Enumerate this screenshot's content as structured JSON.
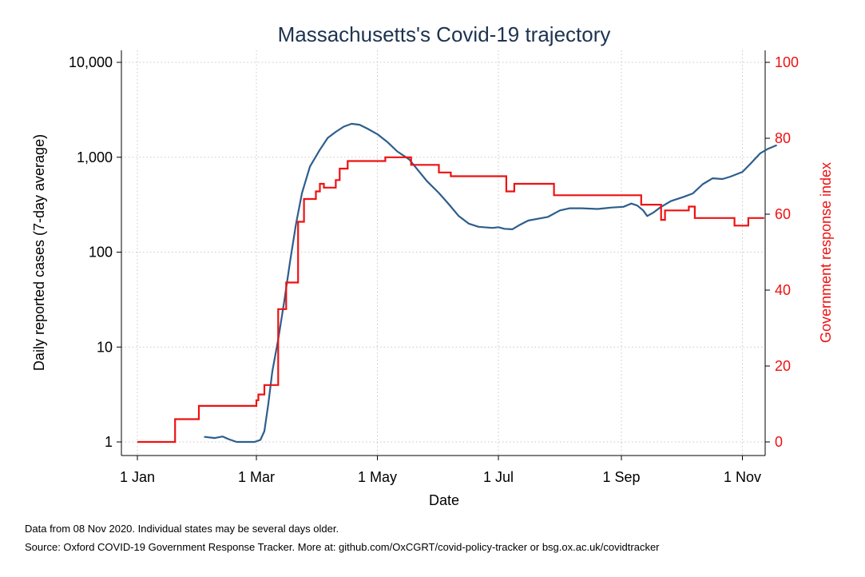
{
  "chart_data": {
    "type": "line",
    "title": "Massachusetts's Covid-19 trajectory",
    "xlabel": "Date",
    "ylabel_left": "Daily reported cases (7-day average)",
    "ylabel_right": "Government response index",
    "x_ticks": [
      "2020-01-01",
      "2020-03-01",
      "2020-05-01",
      "2020-07-01",
      "2020-09-01",
      "2020-11-01"
    ],
    "x_tick_labels": [
      "1 Jan",
      "1 Mar",
      "1 May",
      "1 Jul",
      "1 Sep",
      "1 Nov"
    ],
    "xlim": [
      "2020-01-01",
      "2020-11-08"
    ],
    "y_left_scale": "log",
    "y_left_ticks": [
      1,
      10,
      100,
      1000,
      10000
    ],
    "y_left_tick_labels": [
      "1",
      "10",
      "100",
      "1,000",
      "10,000"
    ],
    "ylim_left": [
      1,
      10000
    ],
    "y_right_ticks": [
      0,
      20,
      40,
      60,
      80,
      100
    ],
    "y_right_tick_labels": [
      "0",
      "20",
      "40",
      "60",
      "80",
      "100"
    ],
    "ylim_right": [
      0,
      100
    ],
    "grid": true,
    "legend": "none",
    "colors": {
      "cases": "#2d5e8c",
      "index": "#ee1111",
      "right_axis": "#ee1111",
      "grid": "#c8c8c8"
    },
    "series": [
      {
        "axis": "left",
        "color": "#2d5e8c",
        "points": [
          [
            "2020-02-04",
            1.13
          ],
          [
            "2020-02-09",
            1.1
          ],
          [
            "2020-02-13",
            1.14
          ],
          [
            "2020-02-16",
            1.07
          ],
          [
            "2020-02-20",
            1.0
          ],
          [
            "2020-02-29",
            1.0
          ],
          [
            "2020-03-03",
            1.05
          ],
          [
            "2020-03-05",
            1.3
          ],
          [
            "2020-03-07",
            2.5
          ],
          [
            "2020-03-09",
            5.5
          ],
          [
            "2020-03-12",
            12
          ],
          [
            "2020-03-15",
            30
          ],
          [
            "2020-03-18",
            80
          ],
          [
            "2020-03-21",
            200
          ],
          [
            "2020-03-24",
            420
          ],
          [
            "2020-03-28",
            800
          ],
          [
            "2020-04-02",
            1200
          ],
          [
            "2020-04-06",
            1600
          ],
          [
            "2020-04-10",
            1850
          ],
          [
            "2020-04-14",
            2100
          ],
          [
            "2020-04-18",
            2250
          ],
          [
            "2020-04-22",
            2200
          ],
          [
            "2020-04-26",
            2000
          ],
          [
            "2020-05-01",
            1750
          ],
          [
            "2020-05-06",
            1450
          ],
          [
            "2020-05-11",
            1150
          ],
          [
            "2020-05-17",
            950
          ],
          [
            "2020-05-21",
            750
          ],
          [
            "2020-05-26",
            560
          ],
          [
            "2020-06-01",
            420
          ],
          [
            "2020-06-06",
            320
          ],
          [
            "2020-06-11",
            240
          ],
          [
            "2020-06-16",
            200
          ],
          [
            "2020-06-21",
            185
          ],
          [
            "2020-06-28",
            180
          ],
          [
            "2020-07-01",
            183
          ],
          [
            "2020-07-04",
            176
          ],
          [
            "2020-07-08",
            174
          ],
          [
            "2020-07-12",
            195
          ],
          [
            "2020-07-16",
            215
          ],
          [
            "2020-07-21",
            225
          ],
          [
            "2020-07-26",
            235
          ],
          [
            "2020-08-01",
            275
          ],
          [
            "2020-08-06",
            290
          ],
          [
            "2020-08-12",
            290
          ],
          [
            "2020-08-20",
            285
          ],
          [
            "2020-08-27",
            295
          ],
          [
            "2020-09-02",
            300
          ],
          [
            "2020-09-06",
            325
          ],
          [
            "2020-09-09",
            310
          ],
          [
            "2020-09-12",
            275
          ],
          [
            "2020-09-14",
            240
          ],
          [
            "2020-09-17",
            260
          ],
          [
            "2020-09-21",
            300
          ],
          [
            "2020-09-26",
            345
          ],
          [
            "2020-10-02",
            380
          ],
          [
            "2020-10-07",
            415
          ],
          [
            "2020-10-12",
            520
          ],
          [
            "2020-10-17",
            600
          ],
          [
            "2020-10-22",
            590
          ],
          [
            "2020-10-26",
            625
          ],
          [
            "2020-11-01",
            700
          ],
          [
            "2020-11-05",
            850
          ],
          [
            "2020-11-10",
            1100
          ],
          [
            "2020-11-14",
            1230
          ],
          [
            "2020-11-18",
            1330
          ]
        ]
      },
      {
        "axis": "right",
        "color": "#ee1111",
        "steps": [
          [
            "2020-01-01",
            0
          ],
          [
            "2020-01-20",
            6
          ],
          [
            "2020-02-01",
            9.5
          ],
          [
            "2020-03-01",
            11
          ],
          [
            "2020-03-02",
            12.5
          ],
          [
            "2020-03-05",
            15
          ],
          [
            "2020-03-12",
            35
          ],
          [
            "2020-03-16",
            42
          ],
          [
            "2020-03-22",
            58
          ],
          [
            "2020-03-25",
            64
          ],
          [
            "2020-03-31",
            66
          ],
          [
            "2020-04-02",
            68
          ],
          [
            "2020-04-04",
            67
          ],
          [
            "2020-04-10",
            69
          ],
          [
            "2020-04-12",
            72
          ],
          [
            "2020-04-16",
            74
          ],
          [
            "2020-05-05",
            75
          ],
          [
            "2020-05-18",
            73
          ],
          [
            "2020-06-01",
            71
          ],
          [
            "2020-06-07",
            70
          ],
          [
            "2020-07-05",
            66
          ],
          [
            "2020-07-09",
            68
          ],
          [
            "2020-07-29",
            65
          ],
          [
            "2020-09-11",
            62.5
          ],
          [
            "2020-09-21",
            58.5
          ],
          [
            "2020-09-23",
            61
          ],
          [
            "2020-10-05",
            62
          ],
          [
            "2020-10-08",
            59
          ],
          [
            "2020-10-28",
            57
          ],
          [
            "2020-11-04",
            59
          ],
          [
            "2020-11-12",
            59
          ]
        ]
      }
    ]
  },
  "notes": {
    "data_date": "Data from 08 Nov 2020. Individual states may be several days older.",
    "source": "Source: Oxford COVID-19 Government Response Tracker. More at: github.com/OxCGRT/covid-policy-tracker or bsg.ox.ac.uk/covidtracker"
  }
}
